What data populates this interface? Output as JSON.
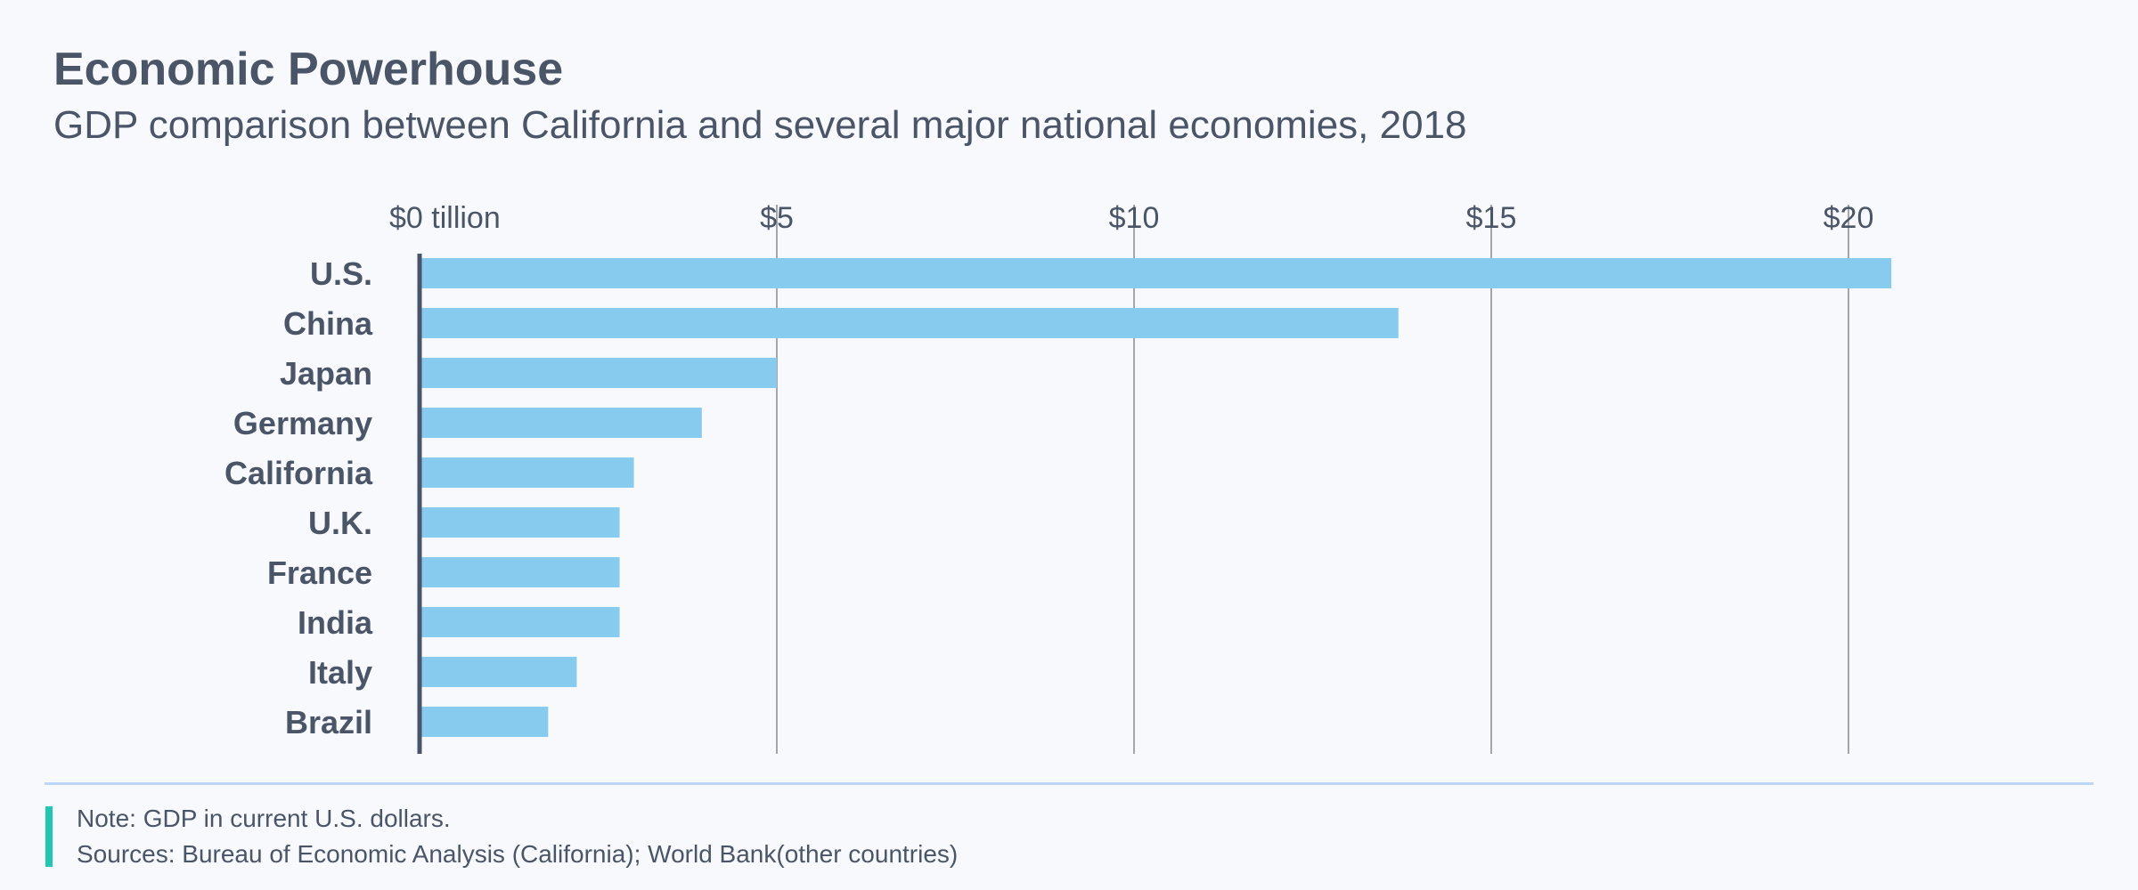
{
  "header": {
    "title": "Economic Powerhouse",
    "subtitle": "GDP comparison between California and several major national economies, 2018"
  },
  "chart_data": {
    "type": "bar",
    "orientation": "horizontal",
    "categories": [
      "U.S.",
      "China",
      "Japan",
      "Germany",
      "California",
      "U.K.",
      "France",
      "India",
      "Italy",
      "Brazil"
    ],
    "values": [
      20.6,
      13.7,
      5.0,
      3.95,
      3.0,
      2.8,
      2.8,
      2.8,
      2.2,
      1.8
    ],
    "xlim": [
      0,
      20
    ],
    "x_ticks": [
      0,
      5,
      10,
      15,
      20
    ],
    "x_tick_labels": [
      "$0 tillion",
      "$5",
      "$10",
      "$15",
      "$20"
    ],
    "x_axis_position": "top",
    "grid": true,
    "bar_color": "#87cbef",
    "xlabel": "",
    "ylabel": ""
  },
  "footer": {
    "note": "Note: GDP in current U.S. dollars.",
    "sources": "Sources: Bureau of Economic Analysis (California); World Bank(other countries)",
    "accent_color": "#1fc8b0",
    "divider_color": "#bcd7f5"
  }
}
